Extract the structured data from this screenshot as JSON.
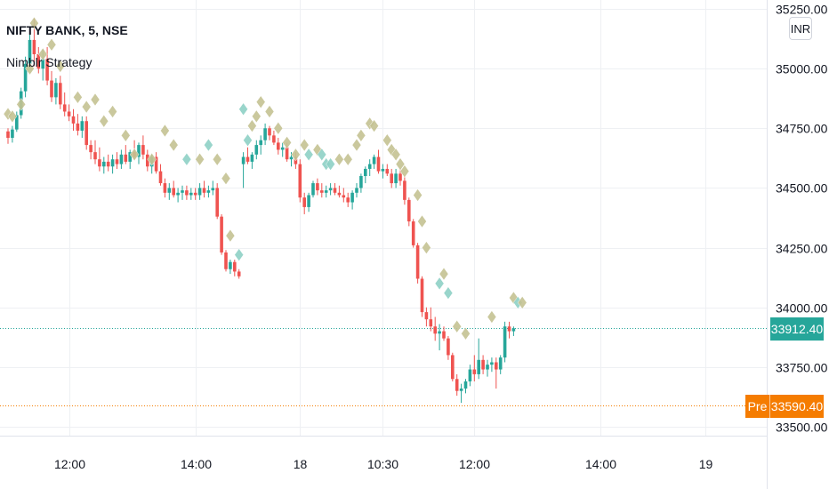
{
  "chart_data": {
    "type": "candlestick",
    "symbol_label": "NIFTY BANK, 5, NSE",
    "indicator_label": "Nimblr Strategy",
    "currency": "INR",
    "y_axis": {
      "ticks": [
        33500,
        33750,
        34000,
        34250,
        34500,
        34750,
        35000,
        35250
      ],
      "tick_labels": [
        "33500.00",
        "33750.00",
        "34000.00",
        "34250.00",
        "34500.00",
        "34750.00",
        "35000.00",
        "35250.00"
      ],
      "range": [
        33460,
        35280
      ]
    },
    "x_axis": {
      "tick_labels": [
        "12:00",
        "14:00",
        "18",
        "10:30",
        "12:00",
        "14:00",
        "19"
      ],
      "tick_bar_index": [
        14,
        43,
        67,
        86,
        107,
        136,
        160
      ]
    },
    "last_price": {
      "label": "33912.40",
      "value": 33912.4,
      "color": "#26a69a"
    },
    "pre_market_price": {
      "badge": "Pre",
      "label": "33590.40",
      "value": 33590.4,
      "color": "#f57c00"
    },
    "colors": {
      "up": "#26a69a",
      "down": "#ef5350",
      "signal_neutral": "#c5c393",
      "signal_teal": "#8fd1c6",
      "grid": "#eef0f3",
      "axis_text": "#131722"
    },
    "candles": [
      [
        34737,
        34750,
        34685,
        34710
      ],
      [
        34710,
        34760,
        34690,
        34745
      ],
      [
        34745,
        34820,
        34735,
        34805
      ],
      [
        34805,
        34920,
        34790,
        34905
      ],
      [
        34905,
        35050,
        34880,
        35020
      ],
      [
        35020,
        35150,
        35000,
        35120
      ],
      [
        35120,
        35210,
        35010,
        35060
      ],
      [
        35060,
        35090,
        34980,
        35000
      ],
      [
        35000,
        35080,
        34950,
        35040
      ],
      [
        35040,
        35090,
        34930,
        34950
      ],
      [
        34950,
        34990,
        34860,
        34880
      ],
      [
        34880,
        34960,
        34850,
        34940
      ],
      [
        34940,
        34970,
        34830,
        34850
      ],
      [
        34850,
        34900,
        34800,
        34820
      ],
      [
        34820,
        34850,
        34780,
        34800
      ],
      [
        34800,
        34830,
        34740,
        34770
      ],
      [
        34770,
        34810,
        34720,
        34740
      ],
      [
        34740,
        34800,
        34710,
        34780
      ],
      [
        34780,
        34800,
        34660,
        34680
      ],
      [
        34680,
        34700,
        34620,
        34650
      ],
      [
        34650,
        34700,
        34600,
        34620
      ],
      [
        34620,
        34670,
        34570,
        34590
      ],
      [
        34590,
        34630,
        34560,
        34610
      ],
      [
        34610,
        34640,
        34570,
        34590
      ],
      [
        34590,
        34640,
        34560,
        34620
      ],
      [
        34620,
        34650,
        34580,
        34600
      ],
      [
        34600,
        34660,
        34580,
        34640
      ],
      [
        34640,
        34680,
        34600,
        34610
      ],
      [
        34610,
        34660,
        34580,
        34650
      ],
      [
        34650,
        34700,
        34620,
        34630
      ],
      [
        34630,
        34690,
        34600,
        34680
      ],
      [
        34680,
        34720,
        34620,
        34640
      ],
      [
        34640,
        34660,
        34570,
        34590
      ],
      [
        34590,
        34640,
        34560,
        34630
      ],
      [
        34630,
        34650,
        34560,
        34570
      ],
      [
        34570,
        34600,
        34510,
        34520
      ],
      [
        34520,
        34540,
        34460,
        34480
      ],
      [
        34480,
        34520,
        34450,
        34500
      ],
      [
        34500,
        34530,
        34460,
        34470
      ],
      [
        34470,
        34500,
        34440,
        34480
      ],
      [
        34480,
        34510,
        34450,
        34490
      ],
      [
        34490,
        34510,
        34450,
        34470
      ],
      [
        34470,
        34500,
        34450,
        34480
      ],
      [
        34480,
        34500,
        34450,
        34470
      ],
      [
        34470,
        34520,
        34450,
        34500
      ],
      [
        34500,
        34530,
        34460,
        34480
      ],
      [
        34480,
        34510,
        34460,
        34490
      ],
      [
        34490,
        34530,
        34470,
        34500
      ],
      [
        34500,
        34520,
        34370,
        34380
      ],
      [
        34380,
        34390,
        34220,
        34230
      ],
      [
        34230,
        34240,
        34150,
        34160
      ],
      [
        34160,
        34200,
        34140,
        34190
      ],
      [
        34190,
        34200,
        34130,
        34150
      ],
      [
        34150,
        34160,
        34120,
        34130
      ],
      [
        34600,
        34650,
        34500,
        34630
      ],
      [
        34630,
        34670,
        34600,
        34610
      ],
      [
        34610,
        34650,
        34580,
        34640
      ],
      [
        34640,
        34700,
        34620,
        34680
      ],
      [
        34680,
        34720,
        34640,
        34700
      ],
      [
        34700,
        34770,
        34680,
        34750
      ],
      [
        34750,
        34760,
        34700,
        34720
      ],
      [
        34720,
        34740,
        34680,
        34690
      ],
      [
        34690,
        34710,
        34640,
        34660
      ],
      [
        34660,
        34690,
        34630,
        34670
      ],
      [
        34670,
        34690,
        34610,
        34620
      ],
      [
        34620,
        34650,
        34590,
        34630
      ],
      [
        34630,
        34650,
        34580,
        34600
      ],
      [
        34600,
        34620,
        34440,
        34460
      ],
      [
        34460,
        34480,
        34390,
        34420
      ],
      [
        34420,
        34480,
        34400,
        34470
      ],
      [
        34470,
        34530,
        34460,
        34520
      ],
      [
        34520,
        34540,
        34470,
        34490
      ],
      [
        34490,
        34520,
        34460,
        34480
      ],
      [
        34480,
        34510,
        34460,
        34490
      ],
      [
        34490,
        34520,
        34470,
        34500
      ],
      [
        34500,
        34520,
        34470,
        34480
      ],
      [
        34480,
        34510,
        34460,
        34470
      ],
      [
        34470,
        34500,
        34440,
        34460
      ],
      [
        34460,
        34480,
        34420,
        34440
      ],
      [
        34440,
        34490,
        34410,
        34480
      ],
      [
        34480,
        34520,
        34460,
        34500
      ],
      [
        34500,
        34560,
        34480,
        34550
      ],
      [
        34550,
        34590,
        34520,
        34580
      ],
      [
        34580,
        34620,
        34550,
        34600
      ],
      [
        34600,
        34640,
        34580,
        34630
      ],
      [
        34630,
        34660,
        34560,
        34570
      ],
      [
        34570,
        34600,
        34540,
        34580
      ],
      [
        34580,
        34600,
        34550,
        34560
      ],
      [
        34560,
        34580,
        34500,
        34520
      ],
      [
        34520,
        34580,
        34500,
        34560
      ],
      [
        34560,
        34580,
        34510,
        34530
      ],
      [
        34530,
        34550,
        34430,
        34450
      ],
      [
        34450,
        34460,
        34340,
        34360
      ],
      [
        34360,
        34370,
        34250,
        34260
      ],
      [
        34260,
        34270,
        34100,
        34120
      ],
      [
        34120,
        34130,
        33960,
        33980
      ],
      [
        33980,
        34000,
        33920,
        33950
      ],
      [
        33950,
        34000,
        33900,
        33920
      ],
      [
        33920,
        33960,
        33860,
        33890
      ],
      [
        33890,
        33930,
        33820,
        33900
      ],
      [
        33900,
        33920,
        33860,
        33870
      ],
      [
        33870,
        33880,
        33780,
        33800
      ],
      [
        33800,
        33810,
        33690,
        33700
      ],
      [
        33700,
        33720,
        33630,
        33650
      ],
      [
        33650,
        33680,
        33600,
        33660
      ],
      [
        33660,
        33700,
        33640,
        33690
      ],
      [
        33690,
        33760,
        33670,
        33740
      ],
      [
        33740,
        33800,
        33690,
        33720
      ],
      [
        33720,
        33870,
        33700,
        33780
      ],
      [
        33780,
        33800,
        33720,
        33740
      ],
      [
        33740,
        33780,
        33710,
        33760
      ],
      [
        33760,
        33790,
        33730,
        33770
      ],
      [
        33770,
        33790,
        33660,
        33740
      ],
      [
        33740,
        33800,
        33720,
        33790
      ],
      [
        33790,
        33940,
        33770,
        33920
      ],
      [
        33920,
        33940,
        33870,
        33900
      ],
      [
        33900,
        33920,
        33880,
        33912
      ]
    ],
    "signals": [
      [
        0,
        34810,
        "n"
      ],
      [
        1,
        34800,
        "n"
      ],
      [
        3,
        34850,
        "n"
      ],
      [
        5,
        35000,
        "n"
      ],
      [
        6,
        35190,
        "n"
      ],
      [
        8,
        35060,
        "n"
      ],
      [
        10,
        35100,
        "n"
      ],
      [
        12,
        35010,
        "n"
      ],
      [
        16,
        34880,
        "n"
      ],
      [
        18,
        34840,
        "n"
      ],
      [
        20,
        34870,
        "n"
      ],
      [
        22,
        34780,
        "n"
      ],
      [
        24,
        34820,
        "n"
      ],
      [
        27,
        34720,
        "n"
      ],
      [
        29,
        34640,
        "n"
      ],
      [
        33,
        34620,
        "n"
      ],
      [
        36,
        34740,
        "n"
      ],
      [
        38,
        34680,
        "n"
      ],
      [
        41,
        34620,
        "t"
      ],
      [
        44,
        34620,
        "n"
      ],
      [
        46,
        34680,
        "t"
      ],
      [
        48,
        34620,
        "n"
      ],
      [
        50,
        34540,
        "n"
      ],
      [
        51,
        34300,
        "n"
      ],
      [
        53,
        34220,
        "t"
      ],
      [
        54,
        34830,
        "t"
      ],
      [
        55,
        34700,
        "t"
      ],
      [
        56,
        34760,
        "n"
      ],
      [
        57,
        34800,
        "n"
      ],
      [
        58,
        34860,
        "n"
      ],
      [
        60,
        34820,
        "n"
      ],
      [
        62,
        34750,
        "n"
      ],
      [
        64,
        34690,
        "n"
      ],
      [
        66,
        34640,
        "n"
      ],
      [
        68,
        34680,
        "n"
      ],
      [
        69,
        34640,
        "t"
      ],
      [
        71,
        34660,
        "n"
      ],
      [
        72,
        34640,
        "t"
      ],
      [
        73,
        34600,
        "t"
      ],
      [
        74,
        34600,
        "t"
      ],
      [
        76,
        34620,
        "n"
      ],
      [
        78,
        34620,
        "n"
      ],
      [
        80,
        34680,
        "n"
      ],
      [
        81,
        34720,
        "n"
      ],
      [
        83,
        34770,
        "n"
      ],
      [
        84,
        34760,
        "n"
      ],
      [
        87,
        34700,
        "n"
      ],
      [
        88,
        34660,
        "n"
      ],
      [
        89,
        34640,
        "n"
      ],
      [
        90,
        34600,
        "n"
      ],
      [
        91,
        34570,
        "n"
      ],
      [
        94,
        34470,
        "n"
      ],
      [
        95,
        34360,
        "n"
      ],
      [
        96,
        34250,
        "n"
      ],
      [
        99,
        34100,
        "t"
      ],
      [
        100,
        34140,
        "n"
      ],
      [
        101,
        34060,
        "t"
      ],
      [
        103,
        33920,
        "n"
      ],
      [
        105,
        33890,
        "n"
      ],
      [
        111,
        33960,
        "n"
      ],
      [
        116,
        34040,
        "n"
      ],
      [
        117,
        34020,
        "t"
      ],
      [
        118,
        34020,
        "n"
      ]
    ]
  }
}
